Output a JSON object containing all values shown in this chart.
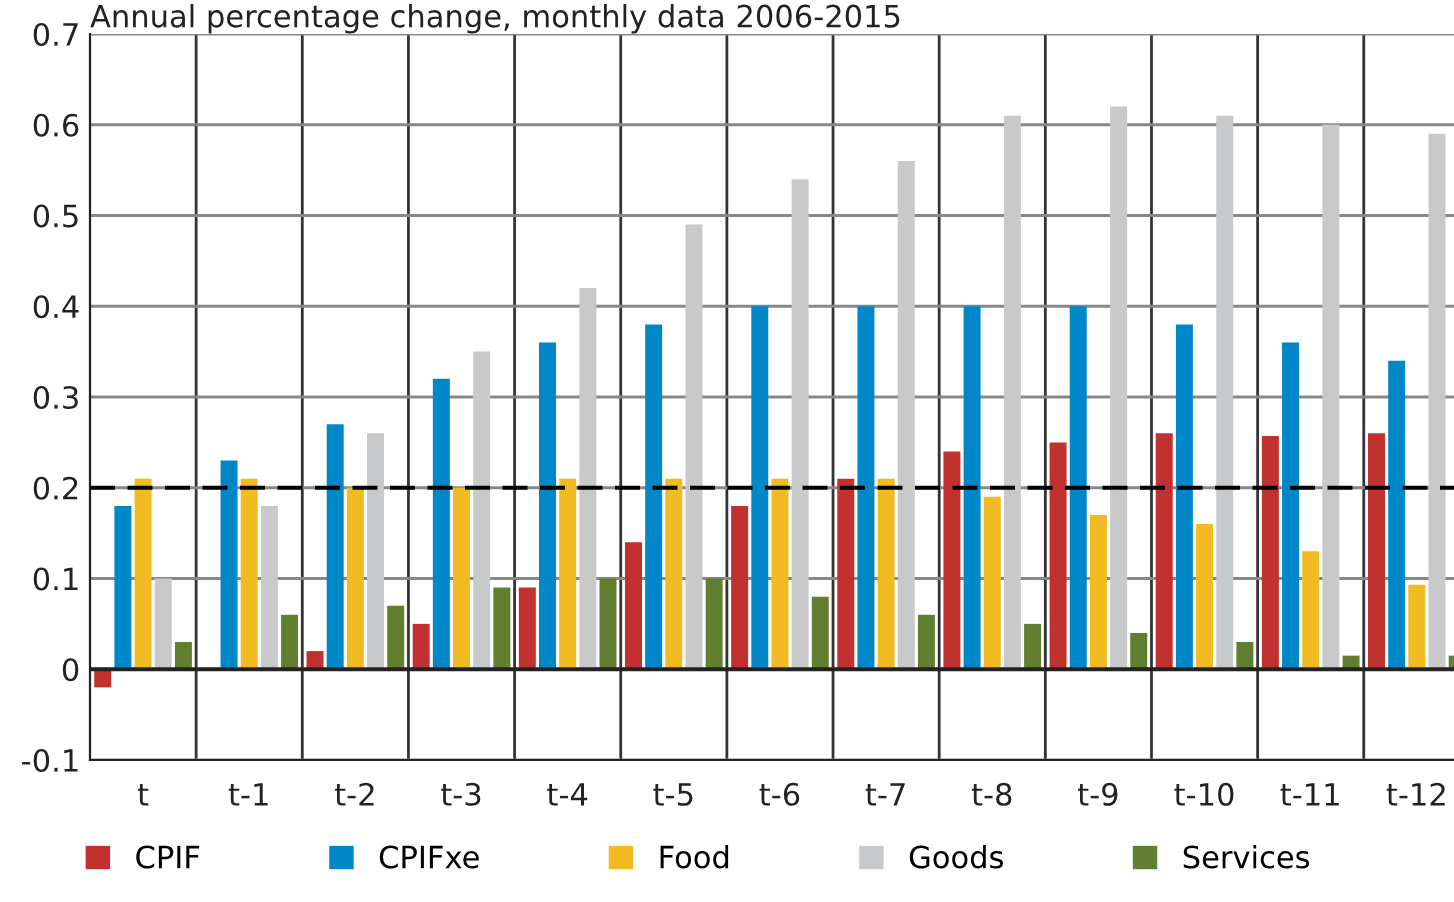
{
  "chart_data": {
    "type": "bar",
    "title": "Annual percentage change, monthly data 2006-2015",
    "categories": [
      "t",
      "t-1",
      "t-2",
      "t-3",
      "t-4",
      "t-5",
      "t-6",
      "t-7",
      "t-8",
      "t-9",
      "t-10",
      "t-11",
      "t-12"
    ],
    "series": [
      {
        "name": "CPIF",
        "color": "#c0312f",
        "values": [
          -0.02,
          0,
          0.02,
          0.05,
          0.09,
          0.14,
          0.18,
          0.21,
          0.24,
          0.25,
          0.26,
          0.257,
          0.26
        ]
      },
      {
        "name": "CPIFxe",
        "color": "#0087c8",
        "values": [
          0.18,
          0.23,
          0.27,
          0.32,
          0.36,
          0.38,
          0.4,
          0.4,
          0.4,
          0.4,
          0.38,
          0.36,
          0.34
        ]
      },
      {
        "name": "Food",
        "color": "#f3bb22",
        "values": [
          0.21,
          0.21,
          0.2,
          0.2,
          0.21,
          0.21,
          0.21,
          0.21,
          0.19,
          0.17,
          0.16,
          0.13,
          0.093
        ]
      },
      {
        "name": "Goods",
        "color": "#c8c9cb",
        "values": [
          0.1,
          0.18,
          0.26,
          0.35,
          0.42,
          0.49,
          0.54,
          0.56,
          0.61,
          0.62,
          0.61,
          0.6,
          0.59
        ]
      },
      {
        "name": "Services",
        "color": "#627f31",
        "values": [
          0.03,
          0.06,
          0.07,
          0.09,
          0.1,
          0.1,
          0.08,
          0.06,
          0.05,
          0.04,
          0.03,
          0.015,
          0.015
        ]
      }
    ],
    "ylim": [
      -0.1,
      0.7
    ],
    "yticks": [
      {
        "value": -0.1,
        "label": "-0.1"
      },
      0,
      0.1,
      0.2,
      0.3,
      0.4,
      0.5,
      0.6,
      0.7
    ],
    "ref_lines": [
      {
        "axis": "y",
        "value": 0.2,
        "color": "#000000",
        "line_style": "dashed"
      }
    ],
    "grid": true,
    "legend": "bottom"
  }
}
